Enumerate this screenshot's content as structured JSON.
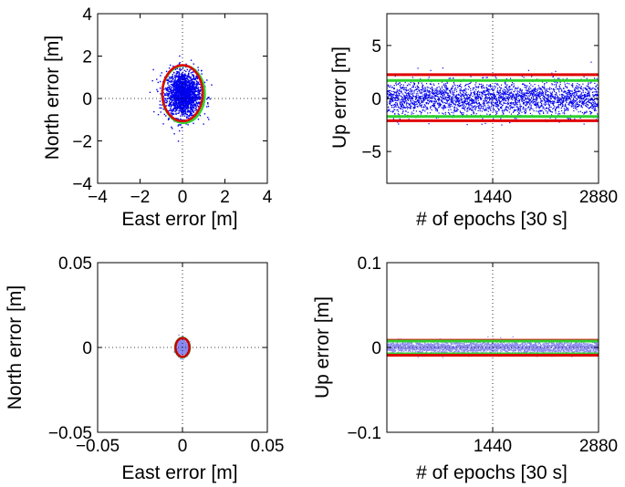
{
  "figure": {
    "layout": "2x2 grid of error plots"
  },
  "chart_data": [
    {
      "id": "top-left",
      "type": "scatter",
      "xlabel": "East error [m]",
      "ylabel": "North error [m]",
      "xlim": [
        -4,
        4
      ],
      "ylim": [
        -4,
        4
      ],
      "xticks": [
        -4,
        -2,
        0,
        2,
        4
      ],
      "yticks": [
        -4,
        -2,
        0,
        2,
        4
      ],
      "xtick_labels": [
        "−4",
        "−2",
        "0",
        "2",
        "4"
      ],
      "ytick_labels": [
        "−4",
        "−2",
        "0",
        "2",
        "4"
      ],
      "grid": "dotted at zero",
      "scatter": {
        "n": 1900,
        "center": [
          0.05,
          0.2
        ],
        "std": [
          0.42,
          0.55
        ],
        "color": "#0000ee"
      },
      "ellipses": [
        {
          "name": "green",
          "center": [
            0.05,
            0.2
          ],
          "radii": [
            1.0,
            1.35
          ],
          "color": "#2fd12f"
        },
        {
          "name": "red",
          "center": [
            0.0,
            0.25
          ],
          "radii": [
            0.95,
            1.32
          ],
          "color": "#e00000"
        }
      ]
    },
    {
      "id": "top-right",
      "type": "scatter",
      "xlabel": "# of epochs [30 s]",
      "ylabel": "Up error [m]",
      "xlim": [
        0,
        2880
      ],
      "ylim": [
        -8,
        8
      ],
      "xticks": [
        1440,
        2880
      ],
      "yticks": [
        -5,
        0,
        5
      ],
      "xtick_labels": [
        "1440",
        "2880"
      ],
      "ytick_labels": [
        "−5",
        "0",
        "5"
      ],
      "grid": "dotted at 1440 and 0",
      "scatter": {
        "n": 2880,
        "center": 0.0,
        "std": 0.8,
        "color": "#0000ee"
      },
      "hlines": [
        {
          "name": "red-upper",
          "y": 2.25,
          "color": "#e00000"
        },
        {
          "name": "green-upper",
          "y": 1.7,
          "color": "#2fd12f"
        },
        {
          "name": "green-lower",
          "y": -1.7,
          "color": "#2fd12f"
        },
        {
          "name": "red-lower",
          "y": -2.1,
          "color": "#e00000"
        }
      ]
    },
    {
      "id": "bottom-left",
      "type": "scatter",
      "xlabel": "East error [m]",
      "ylabel": "North error [m]",
      "xlim": [
        -0.05,
        0.05
      ],
      "ylim": [
        -0.05,
        0.05
      ],
      "xticks": [
        -0.05,
        0,
        0.05
      ],
      "yticks": [
        -0.05,
        0,
        0.05
      ],
      "xtick_labels": [
        "−0.05",
        "0",
        "0.05"
      ],
      "ytick_labels": [
        "−0.05",
        "0",
        "0.05"
      ],
      "grid": "dotted at zero",
      "scatter": {
        "n": 700,
        "center": [
          0.0,
          0.0
        ],
        "std": [
          0.0017,
          0.0024
        ],
        "color": "#8888ee"
      },
      "ellipses": [
        {
          "name": "green",
          "center": [
            0.0,
            0.0
          ],
          "radii": [
            0.0043,
            0.0057
          ],
          "color": "#2fd12f"
        },
        {
          "name": "red",
          "center": [
            0.0,
            0.0
          ],
          "radii": [
            0.0041,
            0.0055
          ],
          "color": "#cc0000"
        }
      ]
    },
    {
      "id": "bottom-right",
      "type": "scatter",
      "xlabel": "# of epochs [30 s]",
      "ylabel": "Up error [m]",
      "xlim": [
        0,
        2880
      ],
      "ylim": [
        -0.1,
        0.1
      ],
      "xticks": [
        1440,
        2880
      ],
      "yticks": [
        -0.1,
        0,
        0.1
      ],
      "xtick_labels": [
        "1440",
        "2880"
      ],
      "ytick_labels": [
        "−0.1",
        "0",
        "0.1"
      ],
      "grid": "dotted at 1440 and 0",
      "scatter": {
        "n": 2880,
        "center": 0.0,
        "std": 0.0035,
        "color": "#8888ee"
      },
      "hlines": [
        {
          "name": "red-upper",
          "y": 0.0085,
          "color": "#e00000"
        },
        {
          "name": "green-upper",
          "y": 0.0075,
          "color": "#2fd12f"
        },
        {
          "name": "green-lower",
          "y": -0.0075,
          "color": "#2fd12f"
        },
        {
          "name": "red-lower",
          "y": -0.0092,
          "color": "#e00000"
        }
      ]
    }
  ]
}
